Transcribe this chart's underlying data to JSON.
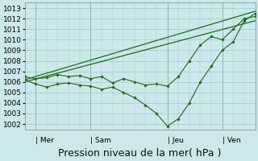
{
  "title": "Pression niveau de la mer( hPa )",
  "bg_color": "#cce8ea",
  "grid_color": "#99cccc",
  "line_color": "#1a6b1a",
  "ylim": [
    1001.5,
    1013.5
  ],
  "yticks": [
    1002,
    1003,
    1004,
    1005,
    1006,
    1007,
    1008,
    1009,
    1010,
    1011,
    1012,
    1013
  ],
  "day_labels": [
    "| Mer",
    "| Sam",
    "| Jeu",
    "| Ven"
  ],
  "day_positions": [
    0.5,
    3.0,
    6.5,
    9.0
  ],
  "xlim": [
    0,
    10.5
  ],
  "xlabel_fontsize": 9,
  "tick_fontsize": 6.5,
  "vline_positions": [
    0.5,
    3.0,
    6.5,
    9.0
  ],
  "line_low_x": [
    0.0,
    0.5,
    1.0,
    1.5,
    2.0,
    2.5,
    3.0,
    3.5,
    4.0,
    4.5,
    5.0,
    5.5,
    6.0,
    6.5,
    7.0,
    7.5,
    8.0,
    8.5,
    9.0,
    9.5,
    10.0,
    10.5
  ],
  "line_low_y": [
    1006.2,
    1005.8,
    1005.5,
    1005.8,
    1005.9,
    1005.7,
    1005.6,
    1005.3,
    1005.5,
    1005.0,
    1004.5,
    1003.8,
    1003.0,
    1001.8,
    1002.5,
    1004.0,
    1006.0,
    1007.5,
    1009.0,
    1009.8,
    1011.8,
    1012.5
  ],
  "line_high_x": [
    0.0,
    0.5,
    1.0,
    1.5,
    2.0,
    2.5,
    3.0,
    3.5,
    4.0,
    4.5,
    5.0,
    5.5,
    6.0,
    6.5,
    7.0,
    7.5,
    8.0,
    8.5,
    9.0,
    9.5,
    10.0,
    10.5
  ],
  "line_high_y": [
    1006.5,
    1006.3,
    1006.4,
    1006.7,
    1006.5,
    1006.6,
    1006.3,
    1006.5,
    1005.9,
    1006.3,
    1006.0,
    1005.7,
    1005.8,
    1005.6,
    1006.5,
    1008.0,
    1009.5,
    1010.3,
    1010.0,
    1011.0,
    1012.0,
    1012.2
  ],
  "line_trend_x": [
    0.0,
    10.5
  ],
  "line_trend_y": [
    1006.2,
    1012.7
  ],
  "line_trend2_x": [
    0.0,
    10.5
  ],
  "line_trend2_y": [
    1006.0,
    1011.8
  ]
}
